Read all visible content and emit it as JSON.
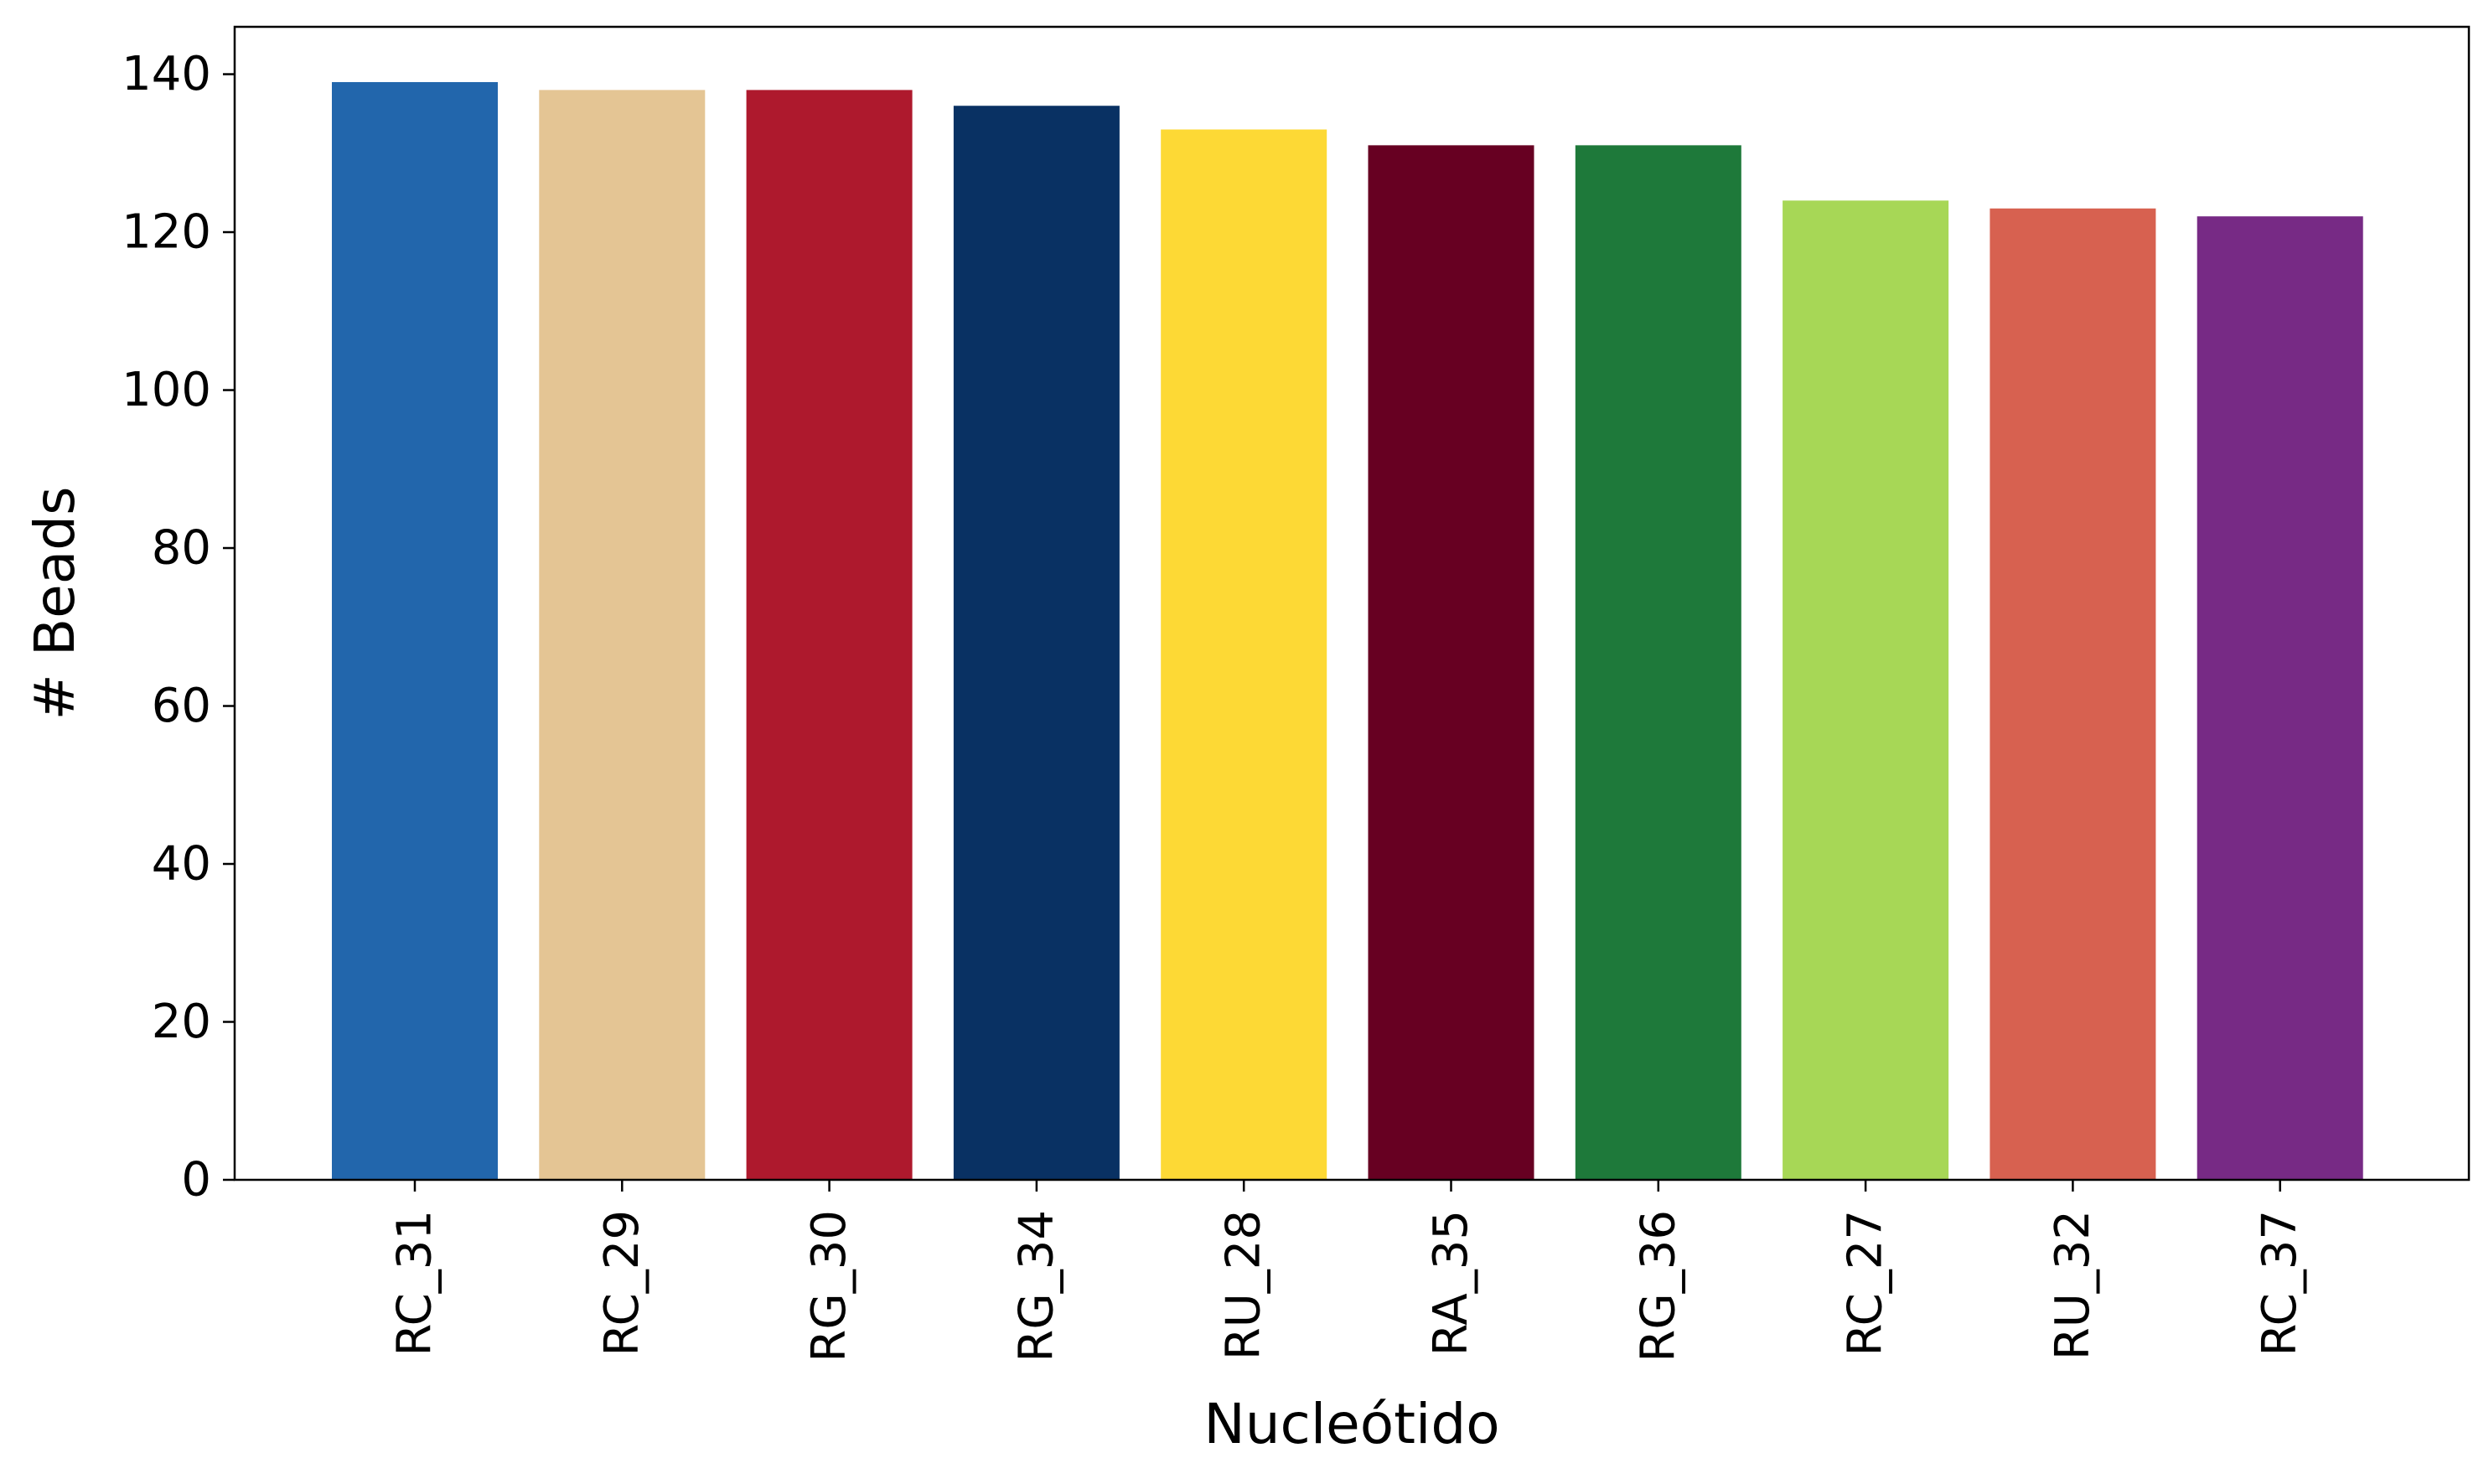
{
  "chart_data": {
    "type": "bar",
    "title": "",
    "xlabel": "Nucleótido",
    "ylabel": "# Beads",
    "categories": [
      "RC_31",
      "RC_29",
      "RG_30",
      "RG_34",
      "RU_28",
      "RA_35",
      "RG_36",
      "RC_27",
      "RU_32",
      "RC_37"
    ],
    "values": [
      139,
      138,
      138,
      136,
      133,
      131,
      131,
      124,
      123,
      122
    ],
    "colors": [
      "#2266AC",
      "#E4C594",
      "#AE192D",
      "#093163",
      "#FDD935",
      "#670022",
      "#1E793A",
      "#A7D756",
      "#D76150",
      "#772A85"
    ],
    "ylim": [
      0,
      146
    ],
    "yticks": [
      0,
      20,
      40,
      60,
      80,
      100,
      120,
      140
    ],
    "grid": false,
    "legend": "none"
  }
}
